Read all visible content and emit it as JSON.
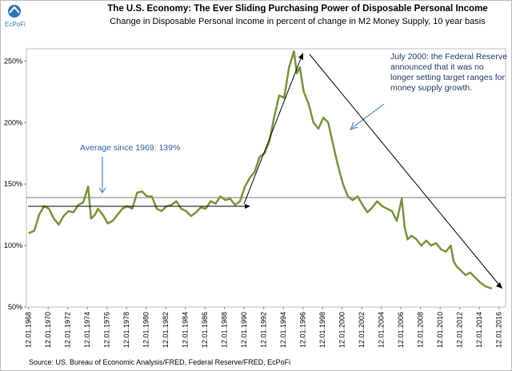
{
  "chart_data": {
    "type": "line",
    "title": "The U.S. Economy: The Ever Sliding Purchasing Power of Disposable Personal Income",
    "subtitle": "Change in Disposable Personal Income in percent of change in M2 Money Supply, 10 year basis",
    "logo": "EcPoFi",
    "source": "Source:  US. Bureau of Economic Analysis/FRED, Federal Reserve/FRED,  EcPoFi",
    "annotations": {
      "average": "Average since 1969: 139%",
      "fed": [
        "July 2000:  the Federal Reserve",
        "announced that it was no",
        "longer setting target ranges for",
        "money supply growth."
      ]
    },
    "average": 139,
    "grid": false,
    "ylim": [
      50,
      260
    ],
    "yticks": [
      {
        "value": 50,
        "label": "50%"
      },
      {
        "value": 100,
        "label": "100%"
      },
      {
        "value": 150,
        "label": "150%"
      },
      {
        "value": 200,
        "label": "200%"
      },
      {
        "value": 250,
        "label": "250%"
      }
    ],
    "xlim": [
      1968.7,
      2017.6
    ],
    "xticks": [
      {
        "value": 1968.92,
        "label": "12.01.1968"
      },
      {
        "value": 1970.92,
        "label": "12.01.1970"
      },
      {
        "value": 1972.92,
        "label": "12.01.1972"
      },
      {
        "value": 1974.92,
        "label": "12.01.1974"
      },
      {
        "value": 1976.92,
        "label": "12.01.1976"
      },
      {
        "value": 1978.92,
        "label": "12.01.1978"
      },
      {
        "value": 1980.92,
        "label": "12.01.1980"
      },
      {
        "value": 1982.92,
        "label": "12.01.1982"
      },
      {
        "value": 1984.92,
        "label": "12.01.1984"
      },
      {
        "value": 1986.92,
        "label": "12.01.1986"
      },
      {
        "value": 1988.92,
        "label": "12.01.1988"
      },
      {
        "value": 1990.92,
        "label": "12.01.1990"
      },
      {
        "value": 1992.92,
        "label": "12.01.1992"
      },
      {
        "value": 1994.92,
        "label": "12.01.1994"
      },
      {
        "value": 1996.92,
        "label": "12.01.1996"
      },
      {
        "value": 1998.92,
        "label": "12.01.1998"
      },
      {
        "value": 2000.92,
        "label": "12.01.2000"
      },
      {
        "value": 2002.92,
        "label": "12.01.2002"
      },
      {
        "value": 2004.92,
        "label": "12.01.2004"
      },
      {
        "value": 2006.92,
        "label": "12.01.2006"
      },
      {
        "value": 2008.92,
        "label": "12.01.2008"
      },
      {
        "value": 2010.92,
        "label": "12.01.2010"
      },
      {
        "value": 2012.92,
        "label": "12.01.2012"
      },
      {
        "value": 2014.92,
        "label": "12.01.2014"
      },
      {
        "value": 2016.92,
        "label": "12.01.2016"
      }
    ],
    "series": [
      {
        "color": "#77933c",
        "x": [
          1968.92,
          1969.5,
          1970,
          1970.5,
          1971,
          1971.5,
          1972,
          1972.5,
          1973,
          1973.5,
          1974,
          1974.5,
          1975,
          1975.3,
          1975.7,
          1976,
          1976.5,
          1977,
          1977.5,
          1978,
          1978.5,
          1979,
          1979.5,
          1980,
          1980.5,
          1981,
          1981.5,
          1982,
          1982.5,
          1983,
          1983.5,
          1984,
          1984.5,
          1985,
          1985.5,
          1986,
          1986.5,
          1987,
          1987.5,
          1988,
          1988.5,
          1989,
          1989.5,
          1990,
          1990.5,
          1991,
          1991.5,
          1992,
          1992.5,
          1993,
          1993.5,
          1994,
          1994.5,
          1995,
          1995.5,
          1996,
          1996.3,
          1996.6,
          1997,
          1997.5,
          1998,
          1998.5,
          1999,
          1999.5,
          2000,
          2000.5,
          2001,
          2001.5,
          2002,
          2002.5,
          2003,
          2003.5,
          2004,
          2004.5,
          2005,
          2005.5,
          2006,
          2006.5,
          2007,
          2007.3,
          2007.6,
          2008,
          2008.5,
          2009,
          2009.5,
          2010,
          2010.5,
          2011,
          2011.5,
          2012,
          2012.3,
          2012.6,
          2013,
          2013.5,
          2014,
          2014.5,
          2015,
          2015.5,
          2016.2
        ],
        "values": [
          110,
          112,
          125,
          132,
          130,
          122,
          117,
          124,
          128,
          127,
          133,
          135,
          148,
          122,
          125,
          130,
          125,
          118,
          120,
          125,
          130,
          132,
          130,
          143,
          144,
          140,
          140,
          130,
          128,
          132,
          133,
          136,
          130,
          128,
          124,
          127,
          131,
          130,
          136,
          134,
          140,
          137,
          138,
          133,
          136,
          148,
          155,
          160,
          172,
          175,
          185,
          205,
          222,
          220,
          245,
          258,
          240,
          245,
          225,
          215,
          200,
          195,
          204,
          200,
          182,
          165,
          150,
          140,
          137,
          140,
          133,
          127,
          131,
          136,
          132,
          130,
          128,
          120,
          138,
          115,
          105,
          108,
          105,
          100,
          104,
          100,
          102,
          97,
          95,
          100,
          87,
          83,
          80,
          76,
          78,
          74,
          70,
          67,
          65
        ]
      }
    ]
  }
}
